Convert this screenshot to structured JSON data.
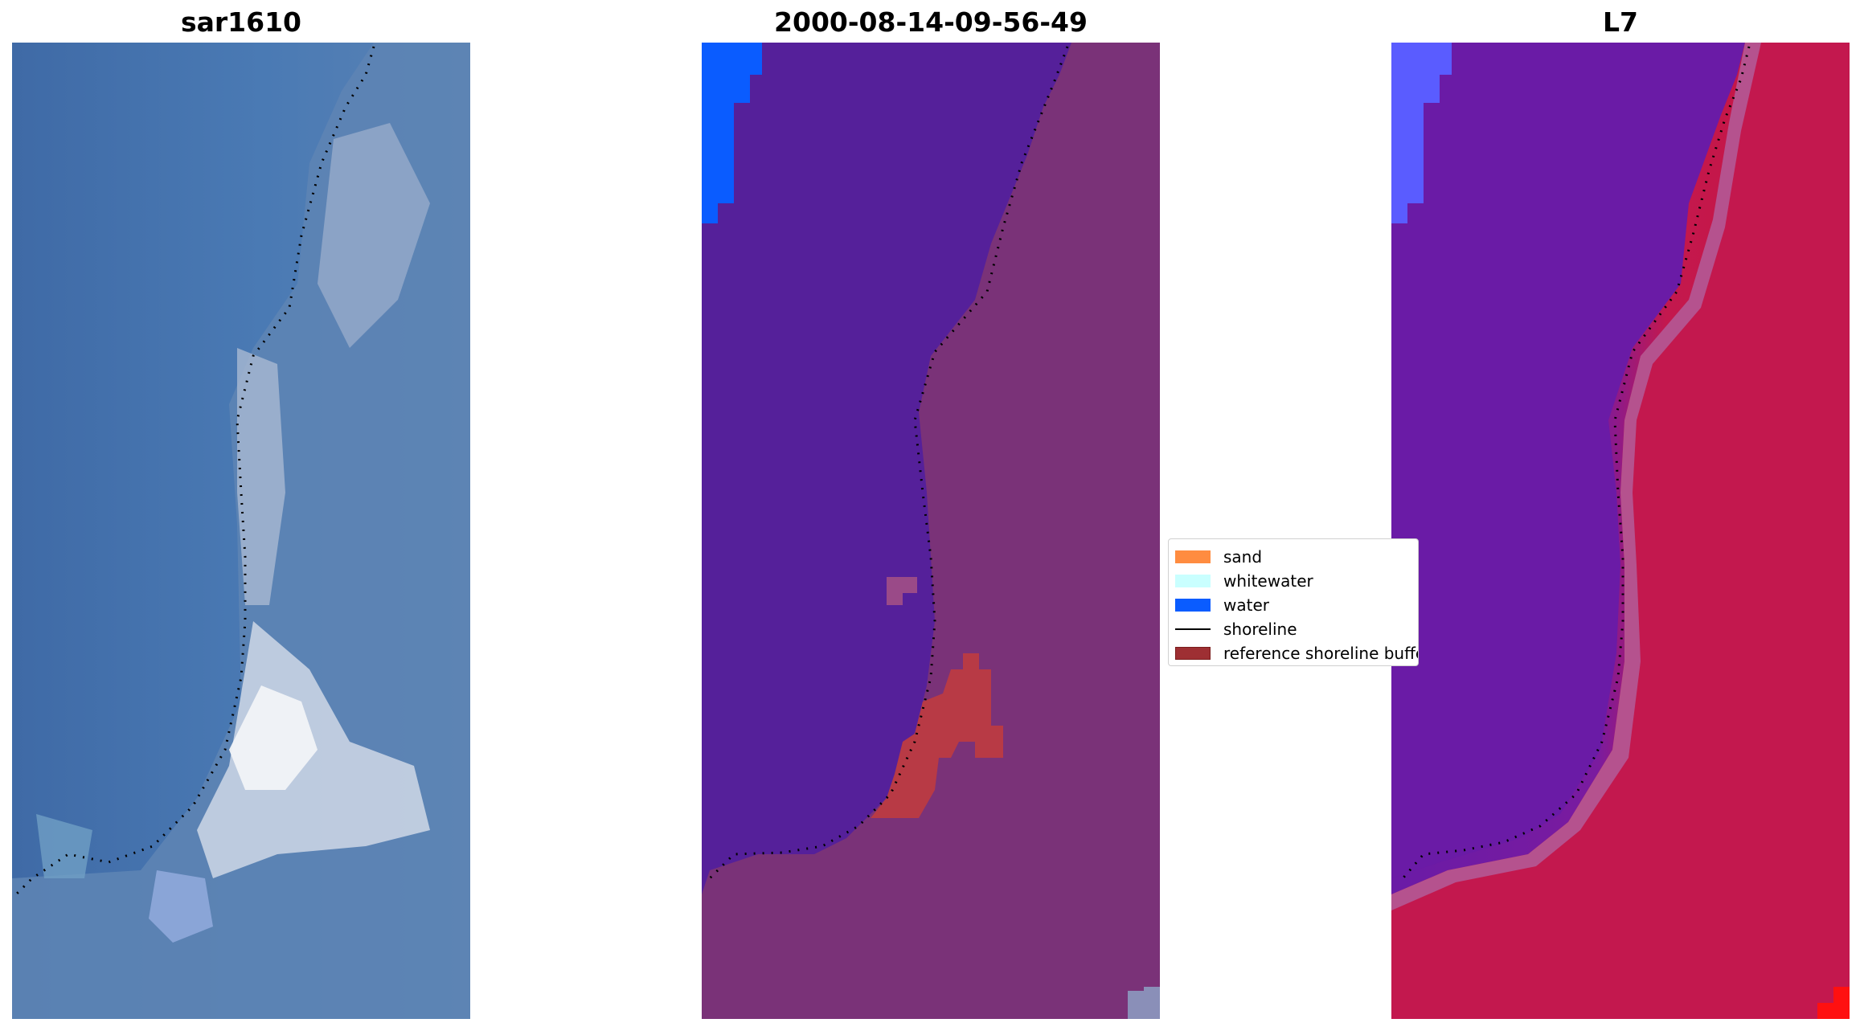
{
  "panels": {
    "rgb": {
      "title": "sar1610"
    },
    "classified": {
      "title": "2000-08-14-09-56-49"
    },
    "mndwi": {
      "title": "L7"
    }
  },
  "legend": {
    "items": [
      {
        "label": "sand",
        "color": "#ff8c40"
      },
      {
        "label": "whitewater",
        "color": "#c9ffff"
      },
      {
        "label": "water",
        "color": "#0a5cff"
      },
      {
        "label": "shoreline",
        "color": "#000000"
      },
      {
        "label": "reference shoreline buffer",
        "color": "#9e2f33"
      }
    ]
  },
  "colors": {
    "ocean": "#4a76ad",
    "classified_water_mask": "#55209a",
    "classified_land": "#7a3278",
    "mndwi_water": "#6a1ba6",
    "mndwi_land": "#c3184e",
    "buffer": "#b83a45",
    "water": "#0a5cff"
  }
}
